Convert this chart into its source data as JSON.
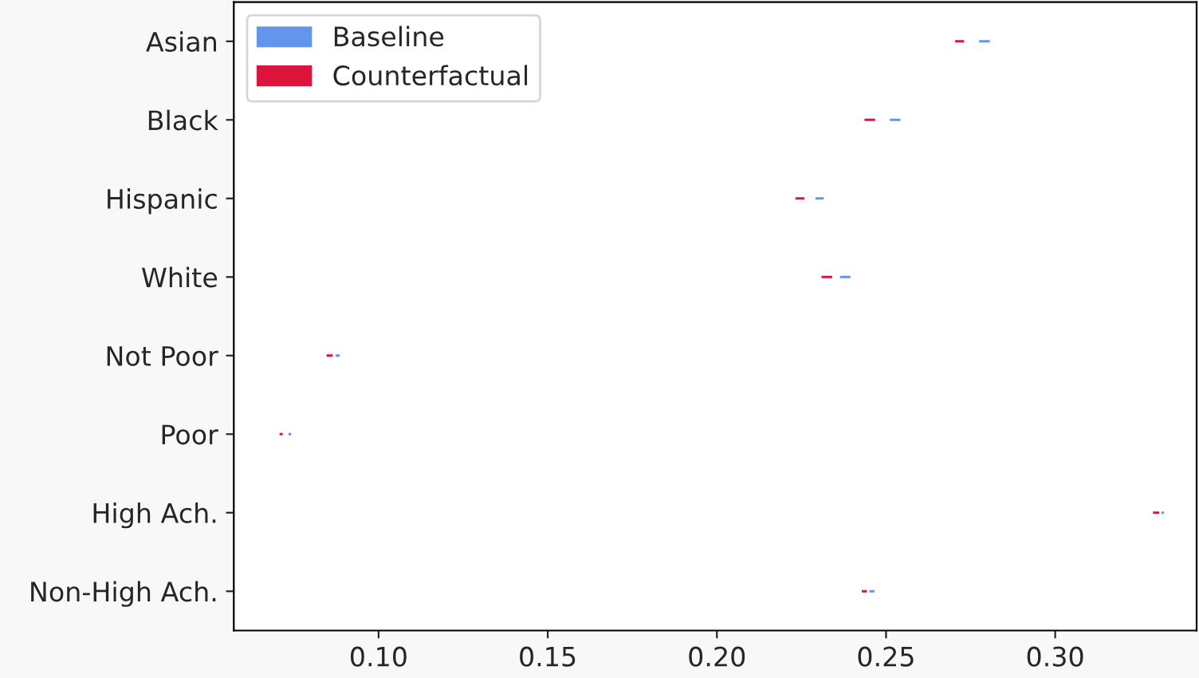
{
  "chart_data": {
    "type": "bar",
    "orientation": "horizontal",
    "categories": [
      "Asian",
      "Black",
      "Hispanic",
      "White",
      "Not Poor",
      "Poor",
      "High Ach.",
      "Non-High Ach."
    ],
    "series": [
      {
        "name": "Baseline",
        "color": "#6495ed",
        "base": [
          0.2772,
          0.2508,
          0.2288,
          0.2361,
          0.0869,
          0.073,
          0.3311,
          0.2447
        ],
        "values": [
          0.0038,
          0.0038,
          0.0031,
          0.0037,
          0.0019,
          0.0015,
          0.0014,
          0.0022
        ]
      },
      {
        "name": "Counterfactual",
        "color": "#dc143c",
        "base": [
          0.2701,
          0.2433,
          0.2229,
          0.2306,
          0.0843,
          0.0704,
          0.3286,
          0.2425
        ],
        "values": [
          0.0033,
          0.0038,
          0.0033,
          0.0038,
          0.0025,
          0.0016,
          0.0025,
          0.0022
        ]
      }
    ],
    "xlim": [
      0.0572,
      0.3418
    ],
    "xticks": [
      {
        "value": 0.1,
        "label": "0.10"
      },
      {
        "value": 0.15,
        "label": "0.15"
      },
      {
        "value": 0.2,
        "label": "0.20"
      },
      {
        "value": 0.25,
        "label": "0.25"
      },
      {
        "value": 0.3,
        "label": "0.30"
      }
    ],
    "grid": false,
    "legend": "top left"
  }
}
